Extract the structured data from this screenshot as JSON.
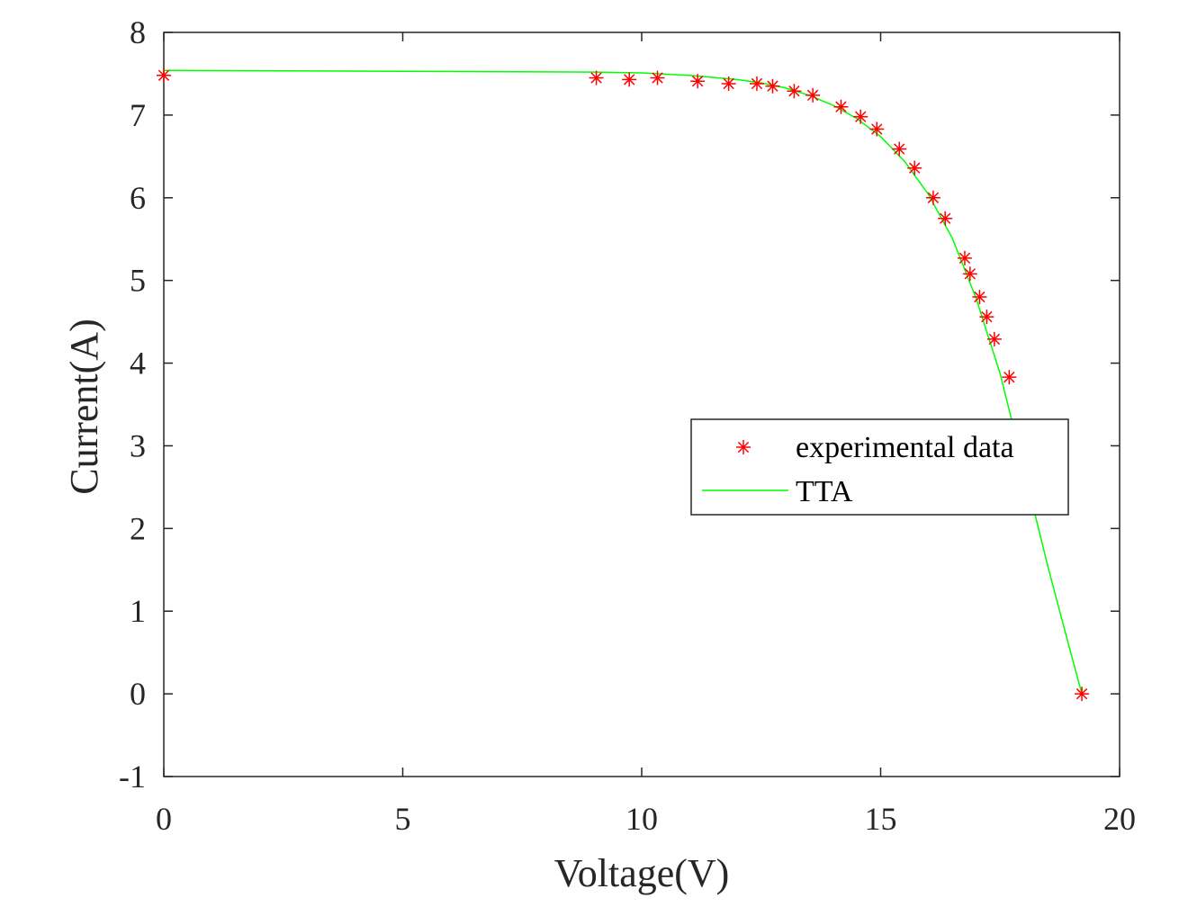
{
  "chart_data": {
    "type": "scatter",
    "xlabel": "Voltage(V)",
    "ylabel": "Current(A)",
    "xlim": [
      0,
      20
    ],
    "ylim": [
      -1,
      8
    ],
    "xticks": [
      "0",
      "5",
      "10",
      "15",
      "20"
    ],
    "yticks": [
      "-1",
      "0",
      "1",
      "2",
      "3",
      "4",
      "5",
      "6",
      "7",
      "8"
    ],
    "grid": false,
    "legend_position": "right",
    "series": [
      {
        "name": "experimental data",
        "kind": "markers",
        "marker": "asterisk",
        "color": "#ff0000",
        "x": [
          0.0,
          9.05,
          9.74,
          10.33,
          11.17,
          11.82,
          12.41,
          12.74,
          13.19,
          13.58,
          14.17,
          14.58,
          14.92,
          15.39,
          15.71,
          16.1,
          16.35,
          16.76,
          16.87,
          17.07,
          17.22,
          17.38,
          17.69,
          19.21
        ],
        "y": [
          7.48,
          7.45,
          7.43,
          7.45,
          7.41,
          7.38,
          7.38,
          7.35,
          7.29,
          7.24,
          7.1,
          6.98,
          6.83,
          6.59,
          6.36,
          6.0,
          5.75,
          5.27,
          5.08,
          4.8,
          4.56,
          4.29,
          3.83,
          0.0
        ]
      },
      {
        "name": "TTA",
        "kind": "line",
        "color": "#00ff00",
        "x": [
          0.0,
          5.0,
          9.0,
          10.0,
          11.0,
          12.0,
          12.5,
          13.0,
          13.5,
          14.0,
          14.5,
          15.0,
          15.5,
          16.0,
          16.5,
          17.0,
          17.5,
          18.0,
          18.5,
          19.0,
          19.21
        ],
        "y": [
          7.54,
          7.53,
          7.52,
          7.51,
          7.48,
          7.43,
          7.39,
          7.33,
          7.24,
          7.12,
          6.96,
          6.74,
          6.44,
          6.04,
          5.51,
          4.78,
          3.87,
          2.71,
          1.54,
          0.45,
          0.0
        ]
      }
    ]
  }
}
